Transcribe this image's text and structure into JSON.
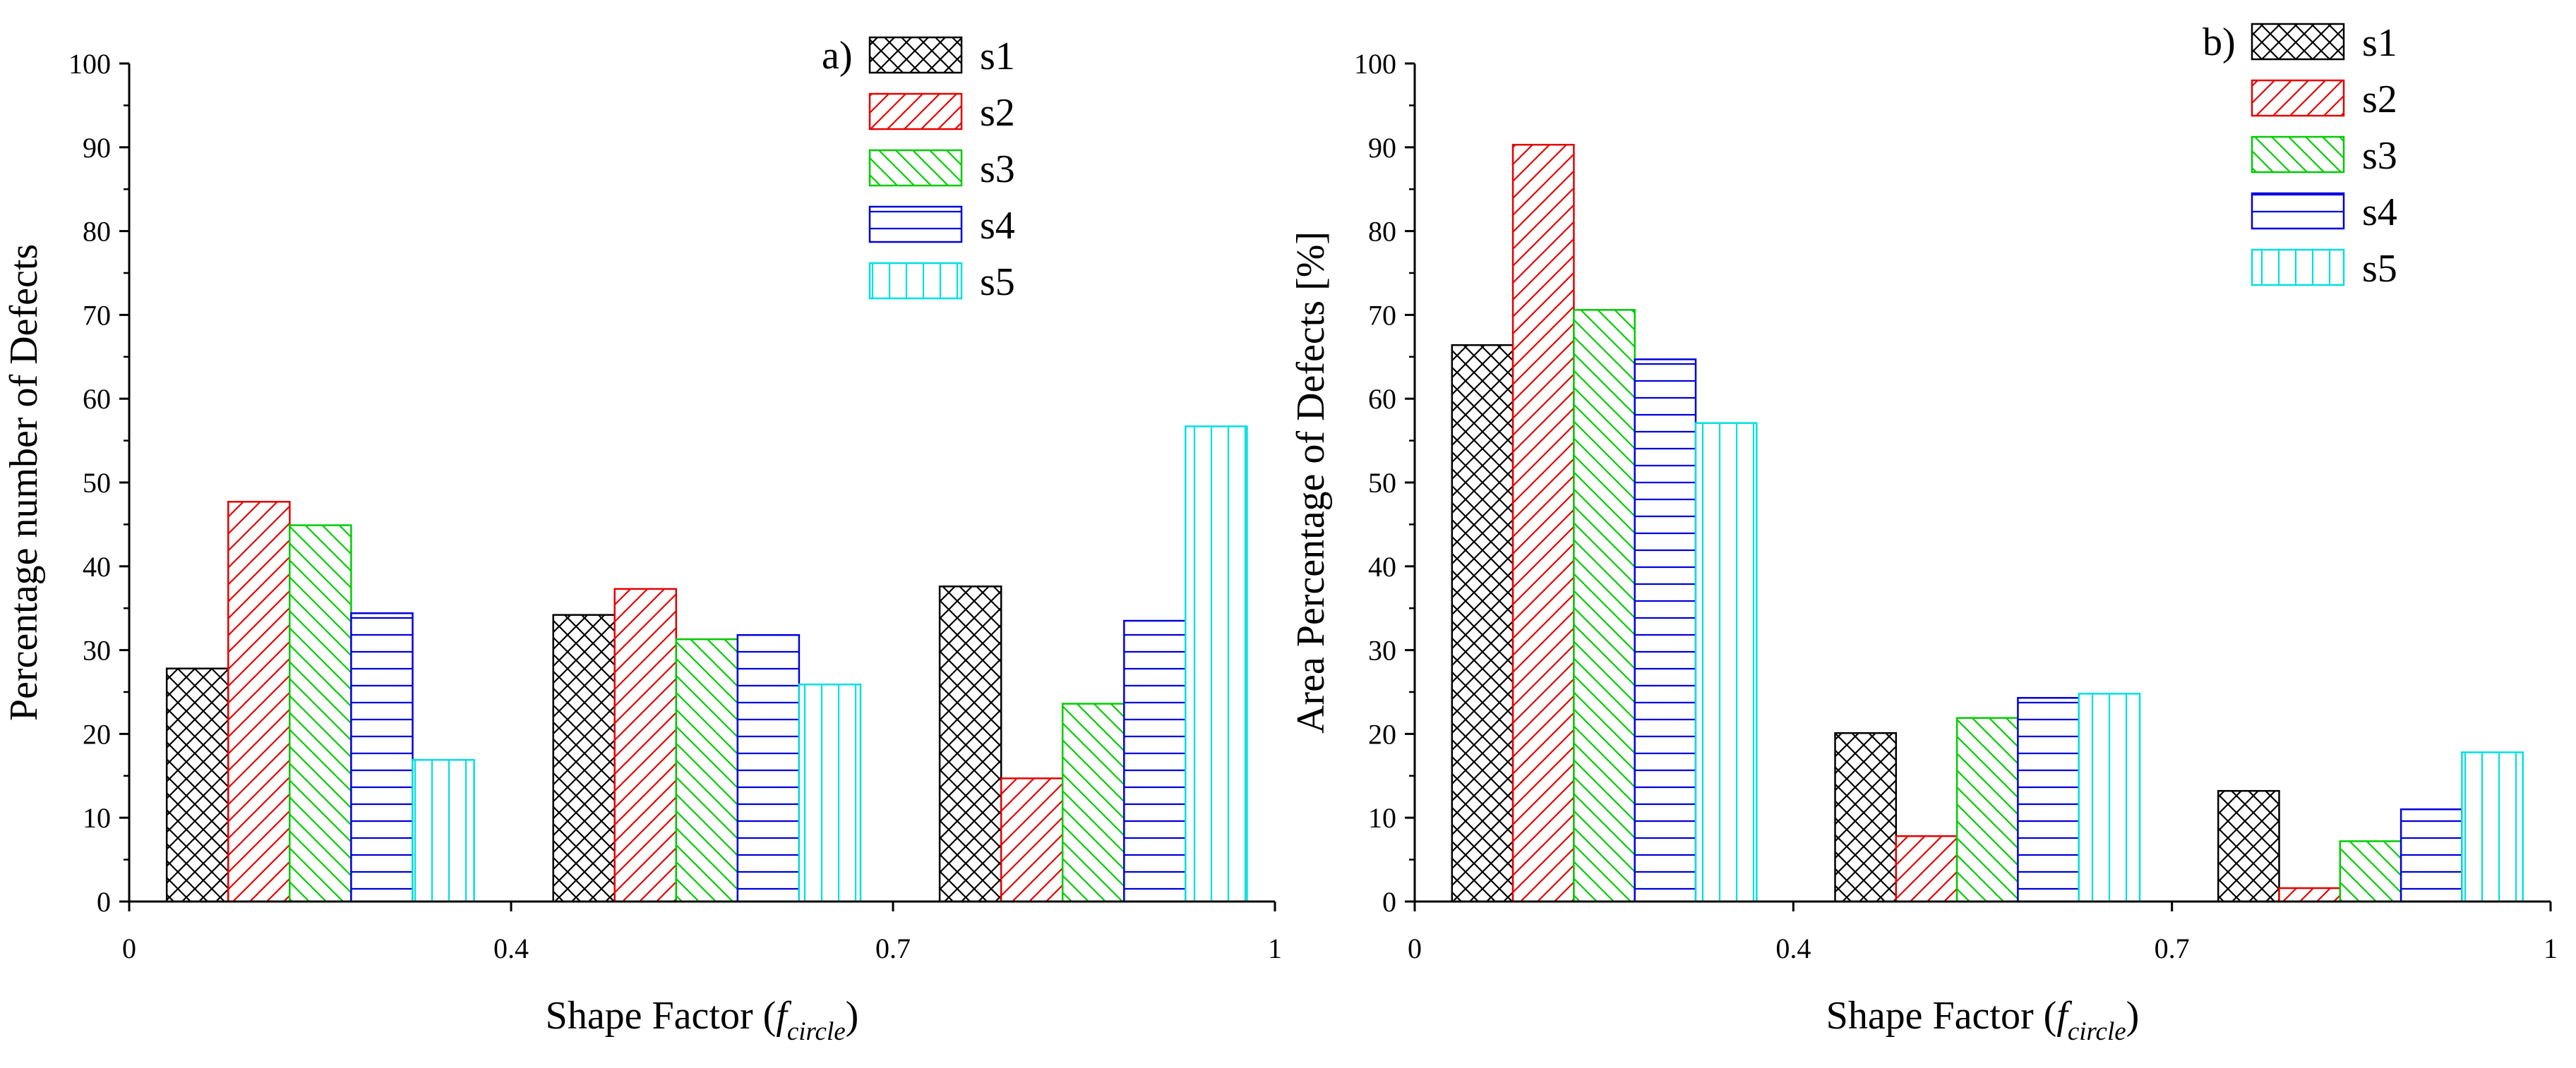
{
  "colors": {
    "s1": "#000000",
    "s2": "#e60000",
    "s3": "#00cc00",
    "s4": "#0000dd",
    "s5": "#00e0e0"
  },
  "patterns": {
    "s1": "crosshatch",
    "s2": "forward-diagonal",
    "s3": "back-diagonal",
    "s4": "horizontal",
    "s5": "vertical"
  },
  "chart_data": [
    {
      "type": "bar",
      "panel_label": "a)",
      "xlabel_main": "Shape Factor (",
      "xlabel_italic": "f",
      "xlabel_sub": "circle",
      "xlabel_end": ")",
      "ylabel": "Percentage number of Defects",
      "ylim": [
        0,
        100
      ],
      "yticks": [
        0,
        10,
        20,
        30,
        40,
        50,
        60,
        70,
        80,
        90,
        100
      ],
      "ytick_labels": [
        "0",
        "10",
        "20",
        "30",
        "40",
        "50",
        "60",
        "70",
        "80",
        "90",
        "100"
      ],
      "xtick_labels": [
        "0",
        "0.4",
        "0.7",
        "1"
      ],
      "groups": 3,
      "legend_position": "top-right",
      "series": [
        {
          "name": "s1",
          "values": [
            27.8,
            34.2,
            37.6
          ]
        },
        {
          "name": "s2",
          "values": [
            47.7,
            37.3,
            14.7
          ]
        },
        {
          "name": "s3",
          "values": [
            44.9,
            31.3,
            23.6
          ]
        },
        {
          "name": "s4",
          "values": [
            34.4,
            31.8,
            33.5
          ]
        },
        {
          "name": "s5",
          "values": [
            16.9,
            25.9,
            56.7
          ]
        }
      ]
    },
    {
      "type": "bar",
      "panel_label": "b)",
      "xlabel_main": "Shape Factor (",
      "xlabel_italic": "f",
      "xlabel_sub": "circle",
      "xlabel_end": ")",
      "ylabel": "Area Percentage of Defects [%]",
      "ylim": [
        0,
        100
      ],
      "yticks": [
        0,
        10,
        20,
        30,
        40,
        50,
        60,
        70,
        80,
        90,
        100
      ],
      "ytick_labels": [
        "0",
        "10",
        "20",
        "30",
        "40",
        "50",
        "60",
        "70",
        "80",
        "90",
        "100"
      ],
      "xtick_labels": [
        "0",
        "0.4",
        "0.7",
        "1"
      ],
      "groups": 3,
      "legend_position": "top-right",
      "series": [
        {
          "name": "s1",
          "values": [
            66.4,
            20.1,
            13.2
          ]
        },
        {
          "name": "s2",
          "values": [
            90.3,
            7.8,
            1.6
          ]
        },
        {
          "name": "s3",
          "values": [
            70.6,
            21.9,
            7.2
          ]
        },
        {
          "name": "s4",
          "values": [
            64.7,
            24.3,
            11.0
          ]
        },
        {
          "name": "s5",
          "values": [
            57.1,
            24.8,
            17.8
          ]
        }
      ]
    }
  ]
}
